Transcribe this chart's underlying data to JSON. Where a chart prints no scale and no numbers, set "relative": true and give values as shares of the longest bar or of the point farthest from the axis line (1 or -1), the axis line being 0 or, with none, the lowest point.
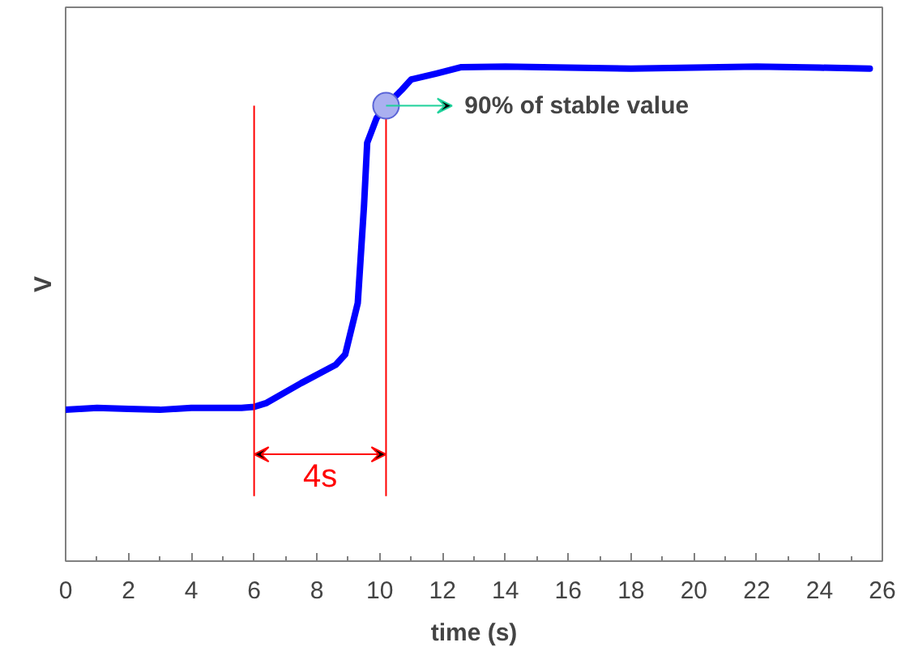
{
  "chart_data": {
    "type": "line",
    "xlabel": "time (s)",
    "ylabel": "V",
    "relative": true,
    "xlim": [
      0,
      26
    ],
    "xticks": [
      0,
      2,
      4,
      6,
      8,
      10,
      12,
      14,
      16,
      18,
      20,
      22,
      24,
      26
    ],
    "grid": false,
    "marker": "none",
    "line_style": "solid",
    "series": [
      {
        "color": "#0000ff",
        "x": [
          0,
          1,
          2,
          3,
          4,
          5,
          5.6,
          6,
          6.4,
          7.5,
          8.6,
          8.9,
          9.3,
          9.5,
          9.6,
          9.9,
          10.2,
          10.7,
          11,
          11.8,
          12.6,
          14,
          16,
          18,
          20,
          22,
          24,
          25.6
        ],
        "values": [
          0.306,
          0.31,
          0.308,
          0.306,
          0.31,
          0.31,
          0.31,
          0.312,
          0.32,
          0.36,
          0.397,
          0.418,
          0.522,
          0.72,
          0.846,
          0.896,
          0.921,
          0.953,
          0.974,
          0.986,
          0.999,
          1.0,
          0.998,
          0.996,
          0.998,
          1.0,
          0.998,
          0.996
        ]
      }
    ],
    "ref_lines": [
      {
        "axis": "x",
        "value": 6,
        "color": "#ff0000"
      },
      {
        "axis": "x",
        "value": 10.2,
        "color": "#ff0000"
      }
    ],
    "annotations": [
      {
        "text": "90% of stable value",
        "x": 10.2,
        "y": 0.921
      },
      "4s"
    ]
  }
}
